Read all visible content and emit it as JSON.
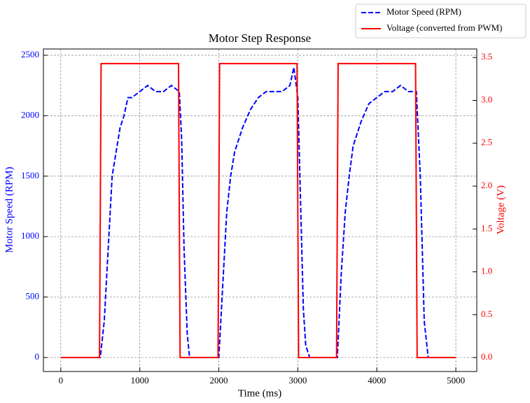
{
  "chart_data": {
    "type": "line",
    "title": "Motor Step Response",
    "x_label": "Time (ms)",
    "y_label": "Motor Speed (RPM)",
    "y2_label": "Voltage (V)",
    "xlim": [
      -220,
      5265
    ],
    "xticks": [
      0,
      1000,
      2000,
      3000,
      4000,
      5000
    ],
    "ylim": [
      -116,
      2552
    ],
    "yticks": [
      0,
      500,
      1000,
      1500,
      2000,
      2500
    ],
    "y2lim": [
      -0.163,
      3.6
    ],
    "y2ticks": [
      {
        "value": 0,
        "label": "0.0"
      },
      {
        "value": 0.5,
        "label": "0.5"
      },
      {
        "value": 1,
        "label": "1.0"
      },
      {
        "value": 1.5,
        "label": "1.5"
      },
      {
        "value": 2,
        "label": "2.0"
      },
      {
        "value": 2.5,
        "label": "2.5"
      },
      {
        "value": 3,
        "label": "3.0"
      },
      {
        "value": 3.5,
        "label": "3.5"
      }
    ],
    "grid": true,
    "legend": "upper right",
    "series": [
      {
        "name": "Motor Speed (RPM)",
        "color": "#0000ff",
        "dash": true,
        "x": [
          0,
          500,
          550,
          600,
          650,
          700,
          750,
          800,
          850,
          900,
          1000,
          1100,
          1200,
          1300,
          1400,
          1500,
          1530,
          1560,
          1600,
          1630,
          2000,
          2050,
          2100,
          2150,
          2200,
          2300,
          2400,
          2500,
          2600,
          2700,
          2800,
          2900,
          2950,
          3000,
          3030,
          3070,
          3100,
          3150,
          3500,
          3550,
          3600,
          3650,
          3700,
          3800,
          3900,
          4000,
          4100,
          4200,
          4300,
          4400,
          4500,
          4550,
          4600,
          4650
        ],
        "values": [
          0,
          0,
          300,
          900,
          1500,
          1700,
          1900,
          2000,
          2150,
          2150,
          2200,
          2250,
          2200,
          2200,
          2250,
          2200,
          1800,
          900,
          200,
          0,
          0,
          600,
          1200,
          1500,
          1700,
          1900,
          2050,
          2150,
          2200,
          2200,
          2200,
          2250,
          2400,
          2150,
          1400,
          400,
          100,
          0,
          0,
          700,
          1200,
          1500,
          1750,
          1950,
          2100,
          2150,
          2200,
          2200,
          2250,
          2200,
          2200,
          1500,
          300,
          0
        ]
      },
      {
        "name": "Voltage (converted from PWM)",
        "color": "#ff0000",
        "axis": "y2",
        "x": [
          0,
          490,
          510,
          1490,
          1510,
          1990,
          2010,
          2990,
          3010,
          3490,
          3510,
          4490,
          4510,
          5000
        ],
        "values": [
          0,
          0,
          3.43,
          3.43,
          0,
          0,
          3.43,
          3.43,
          0,
          0,
          3.43,
          3.43,
          0,
          0
        ]
      }
    ]
  }
}
